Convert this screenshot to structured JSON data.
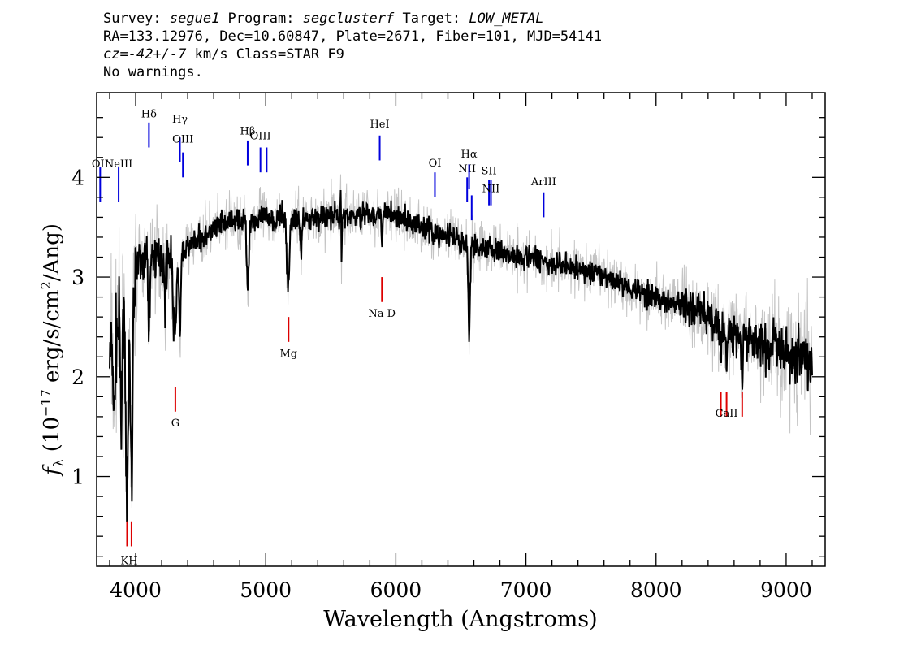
{
  "header": {
    "line1": {
      "survey_label": "Survey: ",
      "survey": "segue1",
      "program_label": " Program: ",
      "program": "segclusterf",
      "target_label": " Target: ",
      "target": "LOW_METAL"
    },
    "line2": "RA=133.12976, Dec=10.60847, Plate=2671, Fiber=101, MJD=54141",
    "line3": {
      "cz_label": "cz=",
      "cz_value": "-42+/-7",
      "rest": " km/s Class=STAR F9"
    },
    "line4": "No warnings."
  },
  "chart_data": {
    "type": "line",
    "xlabel": "Wavelength (Angstroms)",
    "ylabel": "fλ (10⁻¹⁷ erg/s/cm²/Ang)",
    "ylabel_parts": {
      "f": "f",
      "lambda": "λ",
      "unit_open": " (10",
      "exp1": "−17",
      "unit_mid": " erg/s/cm",
      "exp2": "2",
      "unit_close": "/Ang)"
    },
    "xlim": [
      3700,
      9300
    ],
    "ylim": [
      0.1,
      4.85
    ],
    "x_ticks": [
      4000,
      5000,
      6000,
      7000,
      8000,
      9000
    ],
    "x_tick_labels": [
      "4000",
      "5000",
      "6000",
      "7000",
      "8000",
      "9000"
    ],
    "y_ticks": [
      1,
      2,
      3,
      4
    ],
    "y_tick_labels": [
      "1",
      "2",
      "3",
      "4"
    ],
    "grid": false,
    "colors": {
      "flux": "#000000",
      "error": "#c4c4c4",
      "emission": "#0000dd",
      "absorption": "#dd0000"
    },
    "continuum_knots": [
      [
        3800,
        2.2
      ],
      [
        3850,
        2.4
      ],
      [
        3900,
        2.7
      ],
      [
        3950,
        3.0
      ],
      [
        4000,
        3.1
      ],
      [
        4100,
        3.2
      ],
      [
        4200,
        3.2
      ],
      [
        4300,
        3.2
      ],
      [
        4400,
        3.3
      ],
      [
        4500,
        3.4
      ],
      [
        4700,
        3.55
      ],
      [
        5000,
        3.6
      ],
      [
        5300,
        3.6
      ],
      [
        5600,
        3.6
      ],
      [
        5900,
        3.65
      ],
      [
        6200,
        3.5
      ],
      [
        6500,
        3.35
      ],
      [
        7000,
        3.2
      ],
      [
        7500,
        3.05
      ],
      [
        8000,
        2.8
      ],
      [
        8300,
        2.65
      ],
      [
        8600,
        2.45
      ],
      [
        9000,
        2.25
      ],
      [
        9200,
        2.15
      ]
    ],
    "features": [
      [
        3834,
        -0.9,
        5
      ],
      [
        3889,
        -1.3,
        6
      ],
      [
        3934,
        -2.3,
        9
      ],
      [
        3968,
        -2.1,
        9
      ],
      [
        4102,
        -0.7,
        6
      ],
      [
        4226,
        -0.5,
        5
      ],
      [
        4300,
        -0.8,
        12
      ],
      [
        4340,
        -0.8,
        7
      ],
      [
        4861,
        -0.7,
        8
      ],
      [
        5172,
        -0.7,
        10
      ],
      [
        5270,
        -0.3,
        8
      ],
      [
        5577,
        0.9,
        3
      ],
      [
        5580,
        -0.8,
        4
      ],
      [
        5893,
        -0.3,
        6
      ],
      [
        6563,
        -0.9,
        7
      ],
      [
        8498,
        -0.3,
        6
      ],
      [
        8542,
        -0.4,
        6
      ],
      [
        8662,
        -0.5,
        6
      ]
    ],
    "emission_lines": [
      {
        "label": "OII",
        "x": 3727,
        "y1": 3.75,
        "y2": 4.1,
        "label_y": 4.1
      },
      {
        "label": "NeIII",
        "x": 3869,
        "y1": 3.75,
        "y2": 4.1,
        "label_y": 4.1
      },
      {
        "label": "Hδ",
        "x": 4102,
        "y1": 4.3,
        "y2": 4.55,
        "label_y": 4.6
      },
      {
        "label": "Hγ",
        "x": 4340,
        "y1": 4.15,
        "y2": 4.4,
        "label_y": 4.55
      },
      {
        "label": "OIII",
        "x": 4363,
        "y1": 4.0,
        "y2": 4.25,
        "label_y": 4.35
      },
      {
        "label": "Hβ",
        "x": 4861,
        "y1": 4.12,
        "y2": 4.37,
        "label_y": 4.43
      },
      {
        "label": "OIII",
        "x": 4959,
        "y1": 4.05,
        "y2": 4.3,
        "label_y": 4.38
      },
      {
        "label": "",
        "x": 5007,
        "y1": 4.05,
        "y2": 4.3,
        "label_y": 4.38
      },
      {
        "label": "HeI",
        "x": 5876,
        "y1": 4.17,
        "y2": 4.42,
        "label_y": 4.5
      },
      {
        "label": "OI",
        "x": 6300,
        "y1": 3.8,
        "y2": 4.05,
        "label_y": 4.11
      },
      {
        "label": "NII",
        "x": 6548,
        "y1": 3.75,
        "y2": 4.0,
        "label_y": 4.05
      },
      {
        "label": "Hα",
        "x": 6563,
        "y1": 3.88,
        "y2": 4.13,
        "label_y": 4.2
      },
      {
        "label": "",
        "x": 6583,
        "y1": 3.57,
        "y2": 3.82,
        "label_y": 3.85
      },
      {
        "label": "SII",
        "x": 6716,
        "y1": 3.72,
        "y2": 3.97,
        "label_y": 4.03
      },
      {
        "label": "NII",
        "x": 6731,
        "y1": 3.72,
        "y2": 3.97,
        "label_y": 3.85
      },
      {
        "label": "ArIII",
        "x": 7136,
        "y1": 3.6,
        "y2": 3.85,
        "label_y": 3.92
      }
    ],
    "absorption_lines": [
      {
        "label": "KH",
        "x": 3950,
        "marks": [
          3934,
          3968
        ],
        "y1": 0.3,
        "y2": 0.55,
        "label_y": 0.12
      },
      {
        "label": "G",
        "x": 4305,
        "marks": [
          4305
        ],
        "y1": 1.65,
        "y2": 1.9,
        "label_y": 1.5
      },
      {
        "label": "Mg",
        "x": 5175,
        "marks": [
          5175
        ],
        "y1": 2.35,
        "y2": 2.6,
        "label_y": 2.2
      },
      {
        "label": "Na D",
        "x": 5893,
        "marks": [
          5893
        ],
        "y1": 2.75,
        "y2": 3.0,
        "label_y": 2.6
      },
      {
        "label": "CaII",
        "x": 8542,
        "marks": [
          8498,
          8542,
          8662
        ],
        "y1": 1.6,
        "y2": 1.85,
        "label_y": 1.6
      }
    ]
  }
}
